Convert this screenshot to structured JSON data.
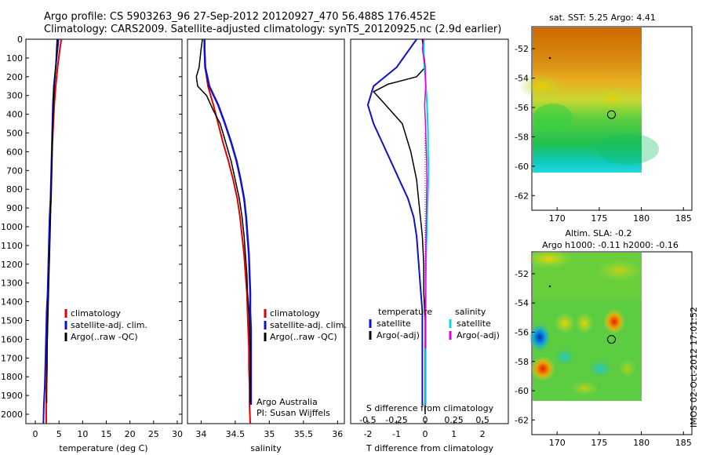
{
  "header": {
    "line1": "Argo profile: CS 5903263_96 27-Sep-2012 20120927_470 56.488S 176.452E",
    "line2": "Climatology: CARS2009. Satellite-adjusted climatology: synTS_20120925.nc (2.9d earlier)"
  },
  "side_label": "IMOS 02-Oct-2012 17:01:52",
  "colors": {
    "climatology": "#e00000",
    "satellite": "#1010d0",
    "argo": "#000000",
    "sal_satellite": "#00d8e8",
    "sal_argo": "#e000e0"
  },
  "chart_data": [
    {
      "id": "temperature",
      "type": "line",
      "xlabel": "temperature (deg C)",
      "x_ticks": [
        "0",
        "5",
        "10",
        "15",
        "20",
        "25",
        "30"
      ],
      "y_ticks": [
        "0",
        "100",
        "200",
        "300",
        "400",
        "500",
        "600",
        "700",
        "800",
        "900",
        "1000",
        "1100",
        "1200",
        "1300",
        "1400",
        "1500",
        "1600",
        "1700",
        "1800",
        "1900",
        "2000"
      ],
      "xlim": [
        -2,
        31
      ],
      "ylim": [
        2050,
        0
      ],
      "y_reversed": true,
      "legend": [
        "climatology",
        "satellite-adj. clim.",
        "Argo(..raw -QC)"
      ],
      "legend_position": "lower-right",
      "series": [
        {
          "name": "climatology",
          "color_key": "climatology",
          "width": 2,
          "x": [
            5.5,
            5.2,
            4.7,
            4.3,
            4.0,
            3.8,
            3.6,
            3.5,
            3.4,
            3.3,
            3.1,
            3.0,
            2.9,
            2.8,
            2.7,
            2.6,
            2.5,
            2.45,
            2.4,
            2.35,
            2.3,
            2.3
          ],
          "y": [
            0,
            50,
            150,
            250,
            350,
            450,
            550,
            650,
            750,
            850,
            950,
            1050,
            1150,
            1250,
            1350,
            1450,
            1550,
            1650,
            1750,
            1850,
            1950,
            2050
          ]
        },
        {
          "name": "satellite-adj. clim.",
          "color_key": "satellite",
          "width": 2,
          "x": [
            4.9,
            4.7,
            4.3,
            3.9,
            3.7,
            3.6,
            3.5,
            3.4,
            3.3,
            3.2,
            3.0,
            2.9,
            2.8,
            2.7,
            2.6,
            2.4,
            2.3,
            2.2,
            2.1,
            2.0,
            1.8,
            1.7
          ],
          "y": [
            0,
            50,
            150,
            250,
            350,
            450,
            550,
            650,
            750,
            850,
            950,
            1050,
            1150,
            1250,
            1350,
            1450,
            1550,
            1650,
            1750,
            1850,
            1950,
            2050
          ]
        },
        {
          "name": "Argo(..raw -QC)",
          "color_key": "argo",
          "width": 1.5,
          "x": [
            4.6,
            4.5,
            4.3,
            4.0,
            3.8,
            3.7,
            3.6,
            3.5,
            3.4,
            3.3,
            3.2,
            3.1,
            3.0,
            2.9,
            2.8,
            2.7,
            2.6,
            2.5,
            2.5,
            2.4,
            2.4
          ],
          "y": [
            0,
            50,
            150,
            250,
            350,
            450,
            550,
            650,
            750,
            850,
            950,
            1050,
            1150,
            1250,
            1350,
            1450,
            1550,
            1650,
            1750,
            1850,
            1940
          ]
        }
      ]
    },
    {
      "id": "salinity",
      "type": "line",
      "xlabel": "salinity",
      "x_ticks": [
        "34",
        "34.5",
        "35",
        "35.5",
        "36"
      ],
      "xlim": [
        33.8,
        36.1
      ],
      "ylim": [
        2050,
        0
      ],
      "y_reversed": true,
      "legend": [
        "climatology",
        "satellite-adj. clim.",
        "Argo(..raw -QC)"
      ],
      "legend_position": "lower-right",
      "annotation": [
        "Argo Australia",
        "PI: Susan Wijffels"
      ],
      "series": [
        {
          "name": "climatology",
          "color_key": "climatology",
          "width": 2,
          "x": [
            34.05,
            34.05,
            34.06,
            34.1,
            34.18,
            34.25,
            34.32,
            34.4,
            34.47,
            34.53,
            34.57,
            34.6,
            34.63,
            34.65,
            34.67,
            34.68,
            34.69,
            34.7,
            34.7,
            34.71,
            34.71,
            34.72
          ],
          "y": [
            0,
            50,
            150,
            250,
            350,
            450,
            550,
            650,
            750,
            850,
            950,
            1050,
            1150,
            1250,
            1350,
            1450,
            1550,
            1650,
            1750,
            1850,
            1950,
            2050
          ]
        },
        {
          "name": "satellite-adj. clim.",
          "color_key": "satellite",
          "width": 2.5,
          "x": [
            34.05,
            34.05,
            34.06,
            34.12,
            34.25,
            34.35,
            34.44,
            34.52,
            34.58,
            34.63,
            34.66,
            34.68,
            34.7,
            34.71,
            34.72,
            34.72,
            34.73,
            34.73,
            34.73,
            34.73,
            34.73
          ],
          "y": [
            0,
            50,
            150,
            250,
            350,
            450,
            550,
            650,
            750,
            850,
            950,
            1050,
            1150,
            1250,
            1350,
            1450,
            1550,
            1650,
            1750,
            1850,
            1950
          ]
        },
        {
          "name": "Argo(..raw -QC)",
          "color_key": "argo",
          "width": 1.5,
          "x": [
            34.02,
            34.0,
            33.97,
            33.93,
            33.95,
            34.08,
            34.18,
            34.28,
            34.36,
            34.44,
            34.5,
            34.56,
            34.6,
            34.63,
            34.65,
            34.67,
            34.68,
            34.7,
            34.71,
            34.72,
            34.72,
            34.72
          ],
          "y": [
            0,
            50,
            150,
            200,
            250,
            300,
            380,
            450,
            550,
            650,
            750,
            850,
            950,
            1050,
            1150,
            1250,
            1350,
            1450,
            1550,
            1650,
            1750,
            1940
          ]
        }
      ]
    },
    {
      "id": "difference",
      "type": "line",
      "xlabel": "T difference from climatology",
      "x_ticks": [
        "-2",
        "-1",
        "0",
        "1",
        "2"
      ],
      "top_label": "S difference from climatology",
      "top_ticks": [
        "-0.5",
        "-0.25",
        "0",
        "0.25",
        "0.5"
      ],
      "xlim": [
        -2.6,
        2.9
      ],
      "ylim": [
        2050,
        0
      ],
      "y_reversed": true,
      "legend_groups": [
        {
          "title": "temperature",
          "items": [
            "satellite",
            "Argo(-adj)"
          ]
        },
        {
          "title": "salinity",
          "items": [
            "satellite",
            "Argo(-adj)"
          ]
        }
      ],
      "series": [
        {
          "name": "temperature satellite",
          "color_key": "satellite",
          "width": 2,
          "x": [
            -0.3,
            -1.0,
            -1.8,
            -2.0,
            -1.8,
            -1.5,
            -1.2,
            -0.9,
            -0.6,
            -0.4,
            -0.3,
            -0.25,
            -0.2,
            -0.15,
            -0.1,
            -0.1,
            -0.1,
            -0.1,
            -0.1,
            -0.1
          ],
          "y": [
            0,
            150,
            250,
            350,
            450,
            550,
            650,
            750,
            850,
            950,
            1050,
            1150,
            1250,
            1350,
            1450,
            1550,
            1650,
            1750,
            1850,
            1950
          ]
        },
        {
          "name": "temperature Argo(-adj)",
          "color_key": "argo",
          "width": 1.5,
          "x": [
            -0.1,
            0.0,
            -0.3,
            -1.3,
            -1.8,
            -1.5,
            -0.8,
            -0.5,
            -0.3,
            -0.2,
            -0.1,
            -0.05,
            -0.05,
            0.0,
            0.0,
            0.0,
            0.0,
            0.0,
            0.0,
            0.0
          ],
          "y": [
            0,
            150,
            200,
            240,
            280,
            330,
            450,
            600,
            750,
            900,
            1050,
            1200,
            1350,
            1500,
            1650,
            1800,
            1900,
            1950,
            1990,
            2000
          ]
        },
        {
          "name": "salinity satellite",
          "color_key": "sal_satellite",
          "width": 2,
          "x": [
            -0.05,
            -0.05,
            0.0,
            0.05,
            0.08,
            0.1,
            0.1,
            0.12,
            0.1,
            0.08,
            0.06,
            0.04,
            0.03,
            0.02,
            0.02,
            0.02,
            0.02,
            0.02,
            0.02,
            0.02
          ],
          "y": [
            0,
            100,
            200,
            300,
            400,
            500,
            600,
            700,
            800,
            900,
            1000,
            1100,
            1200,
            1300,
            1400,
            1500,
            1600,
            1700,
            1800,
            1950
          ]
        },
        {
          "name": "salinity Argo(-adj)",
          "color_key": "sal_argo",
          "width": 1.5,
          "x": [
            -0.05,
            -0.1,
            0.0,
            0.02,
            -0.02,
            0.01,
            0.03,
            0.05,
            0.06,
            0.05,
            0.04,
            0.03,
            0.02,
            0.02,
            0.02,
            0.01,
            0.01,
            0.01
          ],
          "y": [
            0,
            50,
            150,
            250,
            350,
            450,
            550,
            650,
            750,
            850,
            950,
            1050,
            1150,
            1250,
            1350,
            1450,
            1550,
            1650
          ]
        }
      ]
    },
    {
      "id": "sst_map",
      "type": "heatmap",
      "title": "sat. SST: 5.25  Argo: 4.41",
      "x_ticks": [
        "170",
        "175",
        "180",
        "185"
      ],
      "y_ticks": [
        "-52",
        "-54",
        "-56",
        "-58",
        "-60",
        "-62"
      ],
      "xlim": [
        167,
        186
      ],
      "ylim": [
        -63,
        -50.5
      ],
      "argo_position": {
        "lon": 176.452,
        "lat": -56.488
      }
    },
    {
      "id": "sla_map",
      "type": "heatmap",
      "title": "Altim. SLA: -0.2",
      "subtitle": "Argo h1000: -0.11  h2000: -0.16",
      "x_ticks": [
        "170",
        "175",
        "180",
        "185"
      ],
      "y_ticks": [
        "-52",
        "-54",
        "-56",
        "-58",
        "-60",
        "-62"
      ],
      "xlim": [
        167,
        186
      ],
      "ylim": [
        -63,
        -50.5
      ],
      "argo_position": {
        "lon": 176.452,
        "lat": -56.488
      }
    }
  ]
}
